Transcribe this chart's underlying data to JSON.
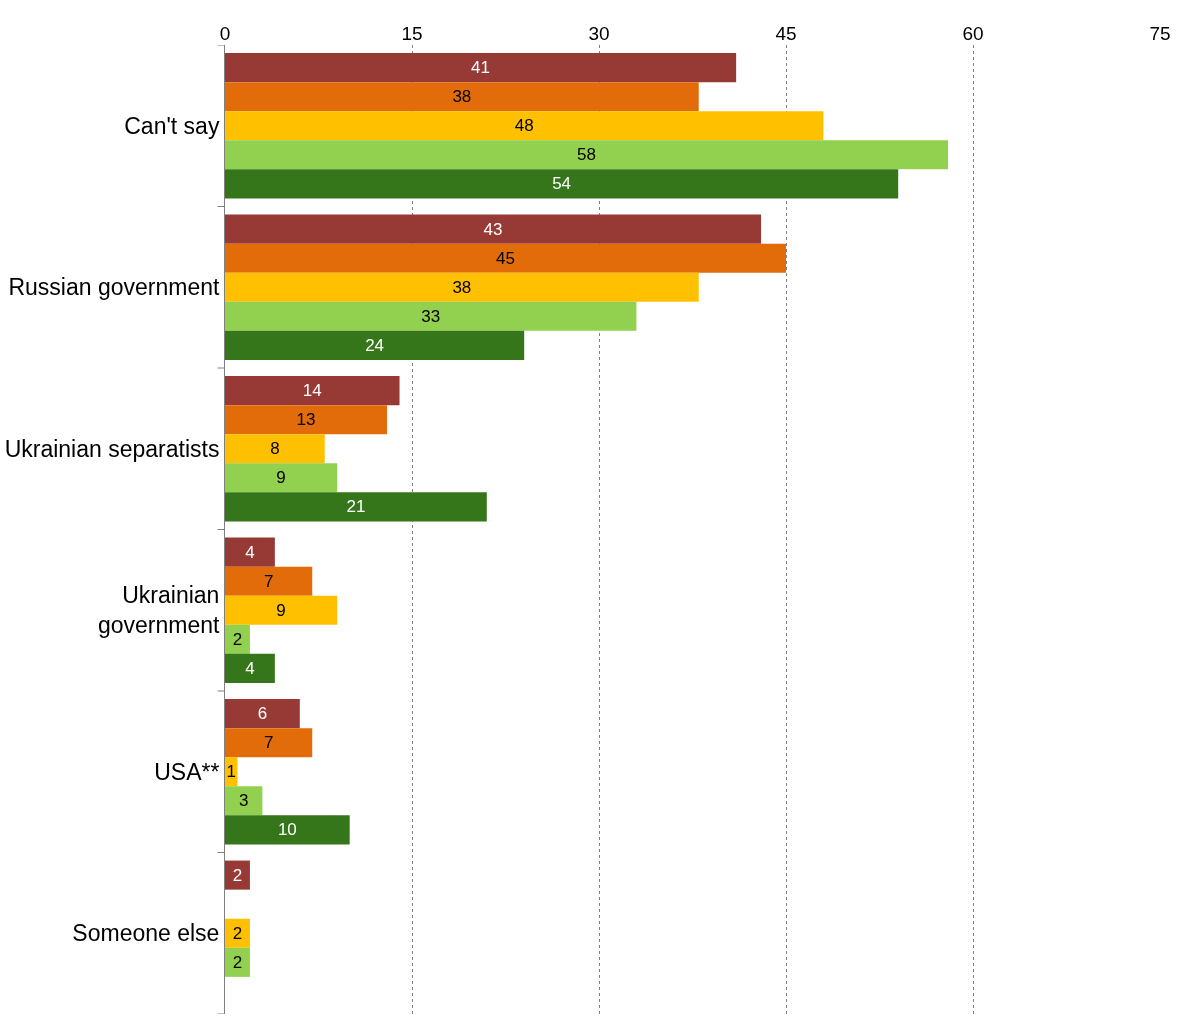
{
  "chart_data": {
    "type": "bar",
    "orientation": "horizontal",
    "categories": [
      "Can't say",
      "Russian government",
      "Ukrainian separatists",
      "Ukrainian\ngovernment",
      "USA**",
      "Someone else"
    ],
    "series": [
      {
        "color": "#973a36",
        "values": [
          41,
          43,
          14,
          4,
          6,
          2
        ]
      },
      {
        "color": "#e36c0a",
        "values": [
          38,
          45,
          13,
          7,
          7,
          null
        ]
      },
      {
        "color": "#ffc000",
        "values": [
          48,
          38,
          8,
          9,
          1,
          2
        ]
      },
      {
        "color": "#92d050",
        "values": [
          58,
          33,
          9,
          2,
          3,
          2
        ]
      },
      {
        "color": "#36761a",
        "values": [
          54,
          24,
          21,
          4,
          10,
          null
        ]
      }
    ],
    "xlim": [
      0,
      75
    ],
    "xticks": [
      0,
      15,
      30,
      45,
      60,
      75
    ],
    "grid": "x",
    "legend": false,
    "data_labels": true
  }
}
